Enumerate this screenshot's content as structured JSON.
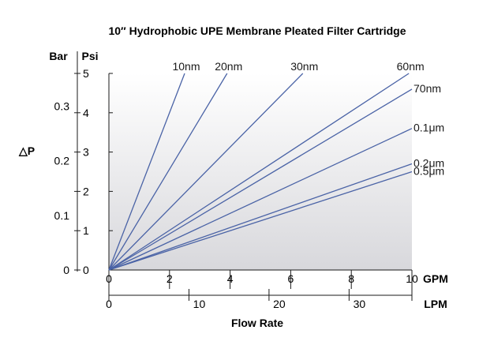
{
  "chart_data": {
    "type": "line",
    "title": "10″ Hydrophobic UPE Membrane Pleated Filter Cartridge",
    "xlabel": "Flow Rate",
    "ylabel": "△P",
    "x_primary_unit": "GPM",
    "x_secondary_unit": "LPM",
    "y_primary_unit": "Psi",
    "y_secondary_unit": "Bar",
    "xlim": [
      0,
      10
    ],
    "ylim": [
      0,
      5
    ],
    "x_ticks": [
      "0",
      "2",
      "4",
      "6",
      "8",
      "10"
    ],
    "x_secondary_ticks": [
      "0",
      "10",
      "20",
      "30"
    ],
    "x_secondary_values": [
      0,
      10,
      20,
      30
    ],
    "y_ticks": [
      "0",
      "1",
      "2",
      "3",
      "4",
      "5"
    ],
    "y_secondary_ticks": [
      "0",
      "0.1",
      "0.2",
      "0.3"
    ],
    "y_secondary_values": [
      0,
      0.1,
      0.2,
      0.3
    ],
    "series": [
      {
        "name": "10nm",
        "x": [
          0,
          2.5
        ],
        "y": [
          0,
          5.0
        ]
      },
      {
        "name": "20nm",
        "x": [
          0,
          3.9
        ],
        "y": [
          0,
          5.0
        ]
      },
      {
        "name": "30nm",
        "x": [
          0,
          6.4
        ],
        "y": [
          0,
          5.0
        ]
      },
      {
        "name": "60nm",
        "x": [
          0,
          9.9
        ],
        "y": [
          0,
          5.0
        ]
      },
      {
        "name": "70nm",
        "x": [
          0,
          10
        ],
        "y": [
          0,
          4.6
        ]
      },
      {
        "name": "0.1μm",
        "x": [
          0,
          10
        ],
        "y": [
          0,
          3.6
        ]
      },
      {
        "name": "0.2μm",
        "x": [
          0,
          10
        ],
        "y": [
          0,
          2.7
        ]
      },
      {
        "name": "0.5μm",
        "x": [
          0,
          10
        ],
        "y": [
          0,
          2.5
        ]
      }
    ],
    "line_color": "#4a63a6",
    "grid": false
  }
}
